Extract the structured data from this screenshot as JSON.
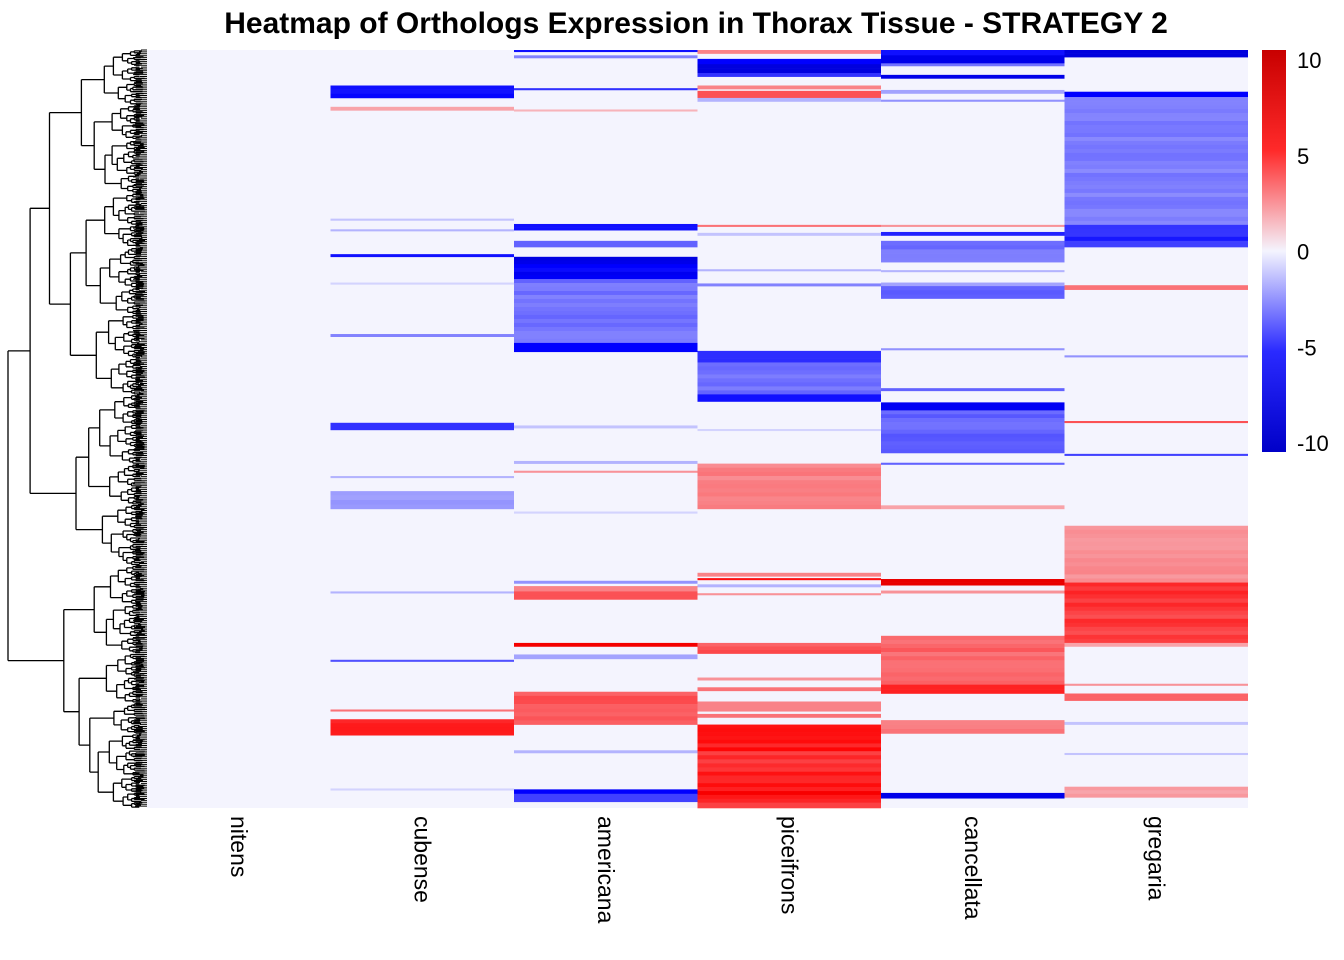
{
  "chart_data": {
    "type": "heatmap",
    "title": "Heatmap of Orthologs Expression in Thorax Tissue - STRATEGY 2",
    "columns": [
      "nitens",
      "cubense",
      "americana",
      "piceifrons",
      "cancellata",
      "gregaria"
    ],
    "row_count": 800,
    "color_scale": {
      "min": -10,
      "max": 10,
      "ticks": [
        10,
        5,
        0,
        -5,
        -10
      ],
      "tick_labels": [
        "10",
        "5",
        "0",
        "-5",
        "-10"
      ],
      "low_color": "#0000c8",
      "mid_color": "#f4f4fe",
      "high_color": "#c80000"
    },
    "dendrogram": "rows",
    "blocks": {
      "nitens": [],
      "cubense": [
        [
          40,
          54,
          -8.5
        ],
        [
          64,
          68,
          2.5
        ],
        [
          190,
          192,
          -1.5
        ],
        [
          202,
          204,
          -2
        ],
        [
          230,
          233,
          -7
        ],
        [
          262,
          264,
          -1
        ],
        [
          320,
          323,
          -3.5
        ],
        [
          420,
          428,
          -6
        ],
        [
          480,
          482,
          -2
        ],
        [
          497,
          517,
          -3
        ],
        [
          610,
          612,
          -2
        ],
        [
          687,
          689,
          -5
        ],
        [
          743,
          745,
          4
        ],
        [
          754,
          772,
          8
        ],
        [
          832,
          834,
          -1
        ]
      ],
      "americana": [
        [
          0,
          2,
          -7
        ],
        [
          6,
          9,
          -3.5
        ],
        [
          43,
          45,
          -6
        ],
        [
          67,
          69,
          2
        ],
        [
          196,
          203,
          -7
        ],
        [
          215,
          222,
          -4.5
        ],
        [
          233,
          258,
          -9
        ],
        [
          258,
          330,
          -4.5
        ],
        [
          330,
          340,
          -7.5
        ],
        [
          423,
          426,
          -1.5
        ],
        [
          463,
          466,
          -2
        ],
        [
          474,
          476,
          3
        ],
        [
          520,
          522,
          -1
        ],
        [
          598,
          601,
          -3
        ],
        [
          604,
          610,
          3.5
        ],
        [
          610,
          619,
          5
        ],
        [
          668,
          672,
          8
        ],
        [
          681,
          686,
          -2.5
        ],
        [
          723,
          760,
          5.5
        ],
        [
          789,
          792,
          -2
        ],
        [
          833,
          838,
          -7.5
        ],
        [
          838,
          847,
          -5.5
        ]
      ],
      "piceifrons": [
        [
          0,
          4,
          3.5
        ],
        [
          10,
          16,
          -7.5
        ],
        [
          16,
          26,
          -9
        ],
        [
          26,
          30,
          -6
        ],
        [
          40,
          44,
          3.5
        ],
        [
          46,
          54,
          5
        ],
        [
          54,
          58,
          -2
        ],
        [
          197,
          199,
          4
        ],
        [
          206,
          209,
          -1.5
        ],
        [
          247,
          249,
          -2
        ],
        [
          263,
          266,
          -3.5
        ],
        [
          339,
          352,
          -6.5
        ],
        [
          352,
          388,
          -4.5
        ],
        [
          388,
          396,
          -7
        ],
        [
          427,
          429,
          -1
        ],
        [
          466,
          517,
          4
        ],
        [
          589,
          593,
          3.5
        ],
        [
          595,
          597,
          7
        ],
        [
          602,
          605,
          -2
        ],
        [
          612,
          614,
          3
        ],
        [
          668,
          680,
          5.5
        ],
        [
          707,
          710,
          3
        ],
        [
          718,
          722,
          4
        ],
        [
          734,
          745,
          3.5
        ],
        [
          748,
          752,
          4
        ],
        [
          760,
          790,
          7.5
        ],
        [
          790,
          813,
          6.5
        ],
        [
          813,
          848,
          8
        ],
        [
          848,
          854,
          5.5
        ]
      ],
      "cancellata": [
        [
          0,
          6,
          -7
        ],
        [
          6,
          15,
          -8.5
        ],
        [
          15,
          18,
          -4
        ],
        [
          28,
          32,
          -8.5
        ],
        [
          45,
          49,
          -2.5
        ],
        [
          56,
          58,
          -3
        ],
        [
          197,
          199,
          3
        ],
        [
          205,
          209,
          -6.5
        ],
        [
          215,
          239,
          -4.5
        ],
        [
          248,
          250,
          -2
        ],
        [
          262,
          266,
          -2.5
        ],
        [
          266,
          280,
          -5
        ],
        [
          336,
          338,
          -3
        ],
        [
          381,
          384,
          -4.5
        ],
        [
          397,
          406,
          -8
        ],
        [
          406,
          454,
          -5
        ],
        [
          465,
          467,
          -4.5
        ],
        [
          513,
          517,
          2.5
        ],
        [
          596,
          603,
          8.5
        ],
        [
          609,
          612,
          3
        ],
        [
          660,
          715,
          5
        ],
        [
          715,
          725,
          6.5
        ],
        [
          755,
          770,
          4
        ],
        [
          837,
          843,
          -8.5
        ]
      ],
      "gregaria": [
        [
          0,
          8,
          -9
        ],
        [
          47,
          53,
          -7.5
        ],
        [
          53,
          197,
          -4
        ],
        [
          197,
          215,
          -7
        ],
        [
          215,
          222,
          -5.5
        ],
        [
          265,
          270,
          4
        ],
        [
          344,
          346,
          -3
        ],
        [
          418,
          420,
          5
        ],
        [
          455,
          457,
          -5.5
        ],
        [
          536,
          600,
          3.5
        ],
        [
          600,
          668,
          6.5
        ],
        [
          668,
          672,
          2.5
        ],
        [
          714,
          716,
          3
        ],
        [
          725,
          733,
          4.5
        ],
        [
          757,
          760,
          -1.5
        ],
        [
          792,
          794,
          -1.5
        ],
        [
          830,
          842,
          3
        ]
      ]
    }
  }
}
